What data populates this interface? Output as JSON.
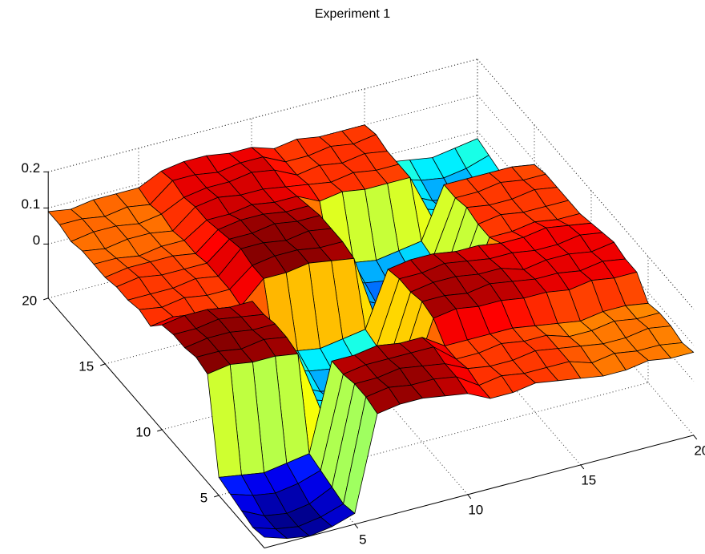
{
  "chart_data": {
    "type": "surface",
    "title": "Experiment 1",
    "x": [
      1,
      2,
      3,
      4,
      5,
      6,
      7,
      8,
      9,
      10,
      11,
      12,
      13,
      14,
      15,
      16,
      17,
      18,
      19,
      20
    ],
    "y": [
      1,
      2,
      3,
      4,
      5,
      6,
      7,
      8,
      9,
      10,
      11,
      12,
      13,
      14,
      15,
      16,
      17,
      18,
      19,
      20
    ],
    "z": [
      [
        -0.12,
        -0.14,
        -0.15,
        -0.14,
        -0.12,
        0.14,
        0.15,
        0.15,
        0.14,
        0.13,
        0.1,
        0.1,
        0.11,
        0.1,
        0.09,
        0.08,
        0.08,
        0.09,
        0.08,
        0.08
      ],
      [
        -0.13,
        -0.15,
        -0.16,
        -0.15,
        -0.13,
        0.15,
        0.16,
        0.15,
        0.15,
        0.14,
        0.1,
        0.11,
        0.1,
        0.1,
        0.1,
        0.08,
        0.09,
        0.08,
        0.08,
        0.07
      ],
      [
        -0.12,
        -0.15,
        -0.16,
        -0.15,
        -0.12,
        0.15,
        0.15,
        0.16,
        0.15,
        0.14,
        0.11,
        0.1,
        0.1,
        0.11,
        0.1,
        0.09,
        0.08,
        0.08,
        0.09,
        0.08
      ],
      [
        -0.11,
        -0.13,
        -0.14,
        -0.13,
        -0.11,
        0.14,
        0.15,
        0.15,
        0.15,
        0.15,
        0.1,
        0.1,
        0.11,
        0.1,
        0.1,
        0.08,
        0.08,
        0.09,
        0.08,
        0.08
      ],
      [
        -0.1,
        -0.11,
        -0.12,
        -0.11,
        -0.1,
        0.14,
        0.14,
        0.15,
        0.14,
        0.14,
        0.1,
        0.1,
        0.1,
        0.1,
        0.09,
        0.08,
        0.07,
        0.08,
        0.08,
        0.07
      ],
      [
        0.15,
        0.16,
        0.15,
        0.15,
        0.14,
        -0.03,
        -0.04,
        -0.05,
        -0.04,
        -0.03,
        0.14,
        0.15,
        0.14,
        0.14,
        0.13,
        0.13,
        0.12,
        0.13,
        0.12,
        0.12
      ],
      [
        0.16,
        0.16,
        0.15,
        0.16,
        0.15,
        -0.04,
        -0.06,
        -0.07,
        -0.05,
        -0.03,
        0.15,
        0.15,
        0.14,
        0.15,
        0.14,
        0.13,
        0.13,
        0.12,
        0.13,
        0.12
      ],
      [
        0.15,
        0.16,
        0.16,
        0.15,
        0.15,
        -0.04,
        -0.07,
        -0.08,
        -0.06,
        -0.04,
        0.14,
        0.15,
        0.15,
        0.14,
        0.14,
        0.12,
        0.13,
        0.13,
        0.12,
        0.13
      ],
      [
        0.15,
        0.15,
        0.16,
        0.15,
        0.14,
        -0.03,
        -0.05,
        -0.06,
        -0.05,
        -0.03,
        0.14,
        0.14,
        0.15,
        0.14,
        0.13,
        0.13,
        0.12,
        0.12,
        0.13,
        0.12
      ],
      [
        0.14,
        0.15,
        0.15,
        0.14,
        0.14,
        -0.02,
        -0.03,
        -0.04,
        -0.03,
        -0.02,
        0.13,
        0.14,
        0.14,
        0.13,
        0.13,
        0.12,
        0.12,
        0.13,
        0.12,
        0.11
      ],
      [
        0.1,
        0.11,
        0.1,
        0.1,
        0.09,
        0.15,
        0.15,
        0.16,
        0.15,
        0.14,
        -0.05,
        -0.06,
        -0.07,
        -0.06,
        -0.05,
        0.1,
        0.1,
        0.11,
        0.1,
        0.1
      ],
      [
        0.11,
        0.1,
        0.11,
        0.1,
        0.1,
        0.15,
        0.16,
        0.16,
        0.15,
        0.15,
        -0.06,
        -0.08,
        -0.09,
        -0.08,
        -0.06,
        0.1,
        0.11,
        0.1,
        0.1,
        0.1
      ],
      [
        0.1,
        0.1,
        0.1,
        0.11,
        0.1,
        0.16,
        0.16,
        0.15,
        0.16,
        0.15,
        -0.06,
        -0.09,
        -0.1,
        -0.08,
        -0.06,
        0.11,
        0.1,
        0.1,
        0.11,
        0.1
      ],
      [
        0.1,
        0.11,
        0.1,
        0.1,
        0.1,
        0.15,
        0.15,
        0.16,
        0.15,
        0.15,
        -0.05,
        -0.07,
        -0.08,
        -0.07,
        -0.05,
        0.1,
        0.1,
        0.11,
        0.1,
        0.1
      ],
      [
        0.09,
        0.1,
        0.1,
        0.1,
        0.09,
        0.14,
        0.15,
        0.15,
        0.14,
        0.14,
        -0.04,
        -0.05,
        -0.06,
        -0.05,
        -0.04,
        0.1,
        0.1,
        0.1,
        0.1,
        0.09
      ],
      [
        0.09,
        0.09,
        0.08,
        0.09,
        0.09,
        0.13,
        0.13,
        0.14,
        0.13,
        0.13,
        0.1,
        0.11,
        0.1,
        0.1,
        0.1,
        -0.03,
        -0.04,
        -0.05,
        -0.04,
        -0.03
      ],
      [
        0.09,
        0.08,
        0.09,
        0.09,
        0.08,
        0.13,
        0.14,
        0.13,
        0.13,
        0.12,
        0.11,
        0.1,
        0.11,
        0.1,
        0.1,
        -0.04,
        -0.06,
        -0.07,
        -0.05,
        -0.04
      ],
      [
        0.08,
        0.09,
        0.09,
        0.08,
        0.09,
        0.12,
        0.13,
        0.13,
        0.14,
        0.13,
        0.1,
        0.11,
        0.1,
        0.11,
        0.1,
        -0.04,
        -0.07,
        -0.08,
        -0.06,
        -0.04
      ],
      [
        0.09,
        0.09,
        0.08,
        0.09,
        0.08,
        0.13,
        0.13,
        0.12,
        0.13,
        0.13,
        0.1,
        0.1,
        0.11,
        0.1,
        0.11,
        -0.03,
        -0.05,
        -0.06,
        -0.05,
        -0.03
      ],
      [
        0.09,
        0.08,
        0.09,
        0.09,
        0.09,
        0.12,
        0.13,
        0.13,
        0.12,
        0.12,
        0.1,
        0.11,
        0.1,
        0.1,
        0.1,
        -0.02,
        -0.03,
        -0.04,
        -0.03,
        -0.02
      ]
    ],
    "xlim": [
      1,
      20
    ],
    "ylim": [
      1,
      20
    ],
    "zlim": [
      -0.15,
      0.2
    ],
    "xticks": [
      5,
      10,
      15,
      20
    ],
    "yticks": [
      5,
      10,
      15,
      20
    ],
    "zticks": [
      0,
      0.1,
      0.2
    ],
    "grid": true,
    "colormap": "jet"
  }
}
